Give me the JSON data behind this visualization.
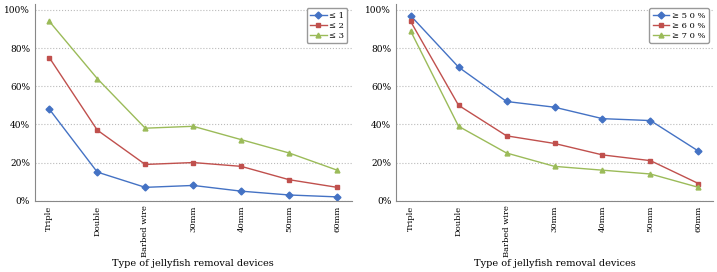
{
  "categories": [
    "Triple",
    "Double",
    "Barbed wire",
    "30mm",
    "40mm",
    "50mm",
    "60mm"
  ],
  "left_xlabel": "Type of jellyfish removal devices",
  "left_series": [
    {
      "label": "≤ 1",
      "color": "#4472C4",
      "marker": "D",
      "values": [
        48,
        15,
        7,
        8,
        5,
        3,
        2
      ]
    },
    {
      "label": "≤ 2",
      "color": "#C0504D",
      "marker": "s",
      "values": [
        75,
        37,
        19,
        20,
        18,
        11,
        7
      ]
    },
    {
      "label": "≤ 3",
      "color": "#9BBB59",
      "marker": "^",
      "values": [
        94,
        64,
        38,
        39,
        32,
        25,
        16
      ]
    }
  ],
  "right_xlabel": "Type of jellyfish removal devices",
  "right_series": [
    {
      "label": "≥ 5 0 %",
      "color": "#4472C4",
      "marker": "D",
      "values": [
        97,
        70,
        52,
        49,
        43,
        42,
        26
      ]
    },
    {
      "label": "≥ 6 0 %",
      "color": "#C0504D",
      "marker": "s",
      "values": [
        94,
        50,
        34,
        30,
        24,
        21,
        9
      ]
    },
    {
      "label": "≥ 7 0 %",
      "color": "#9BBB59",
      "marker": "^",
      "values": [
        89,
        39,
        25,
        18,
        16,
        14,
        7
      ]
    }
  ],
  "ylim": [
    0,
    103
  ],
  "yticks": [
    0,
    20,
    40,
    60,
    80,
    100
  ],
  "ytick_labels": [
    "0%",
    "20%",
    "40%",
    "60%",
    "80%",
    "100%"
  ],
  "background_color": "#ffffff",
  "grid_color": "#bbbbbb"
}
